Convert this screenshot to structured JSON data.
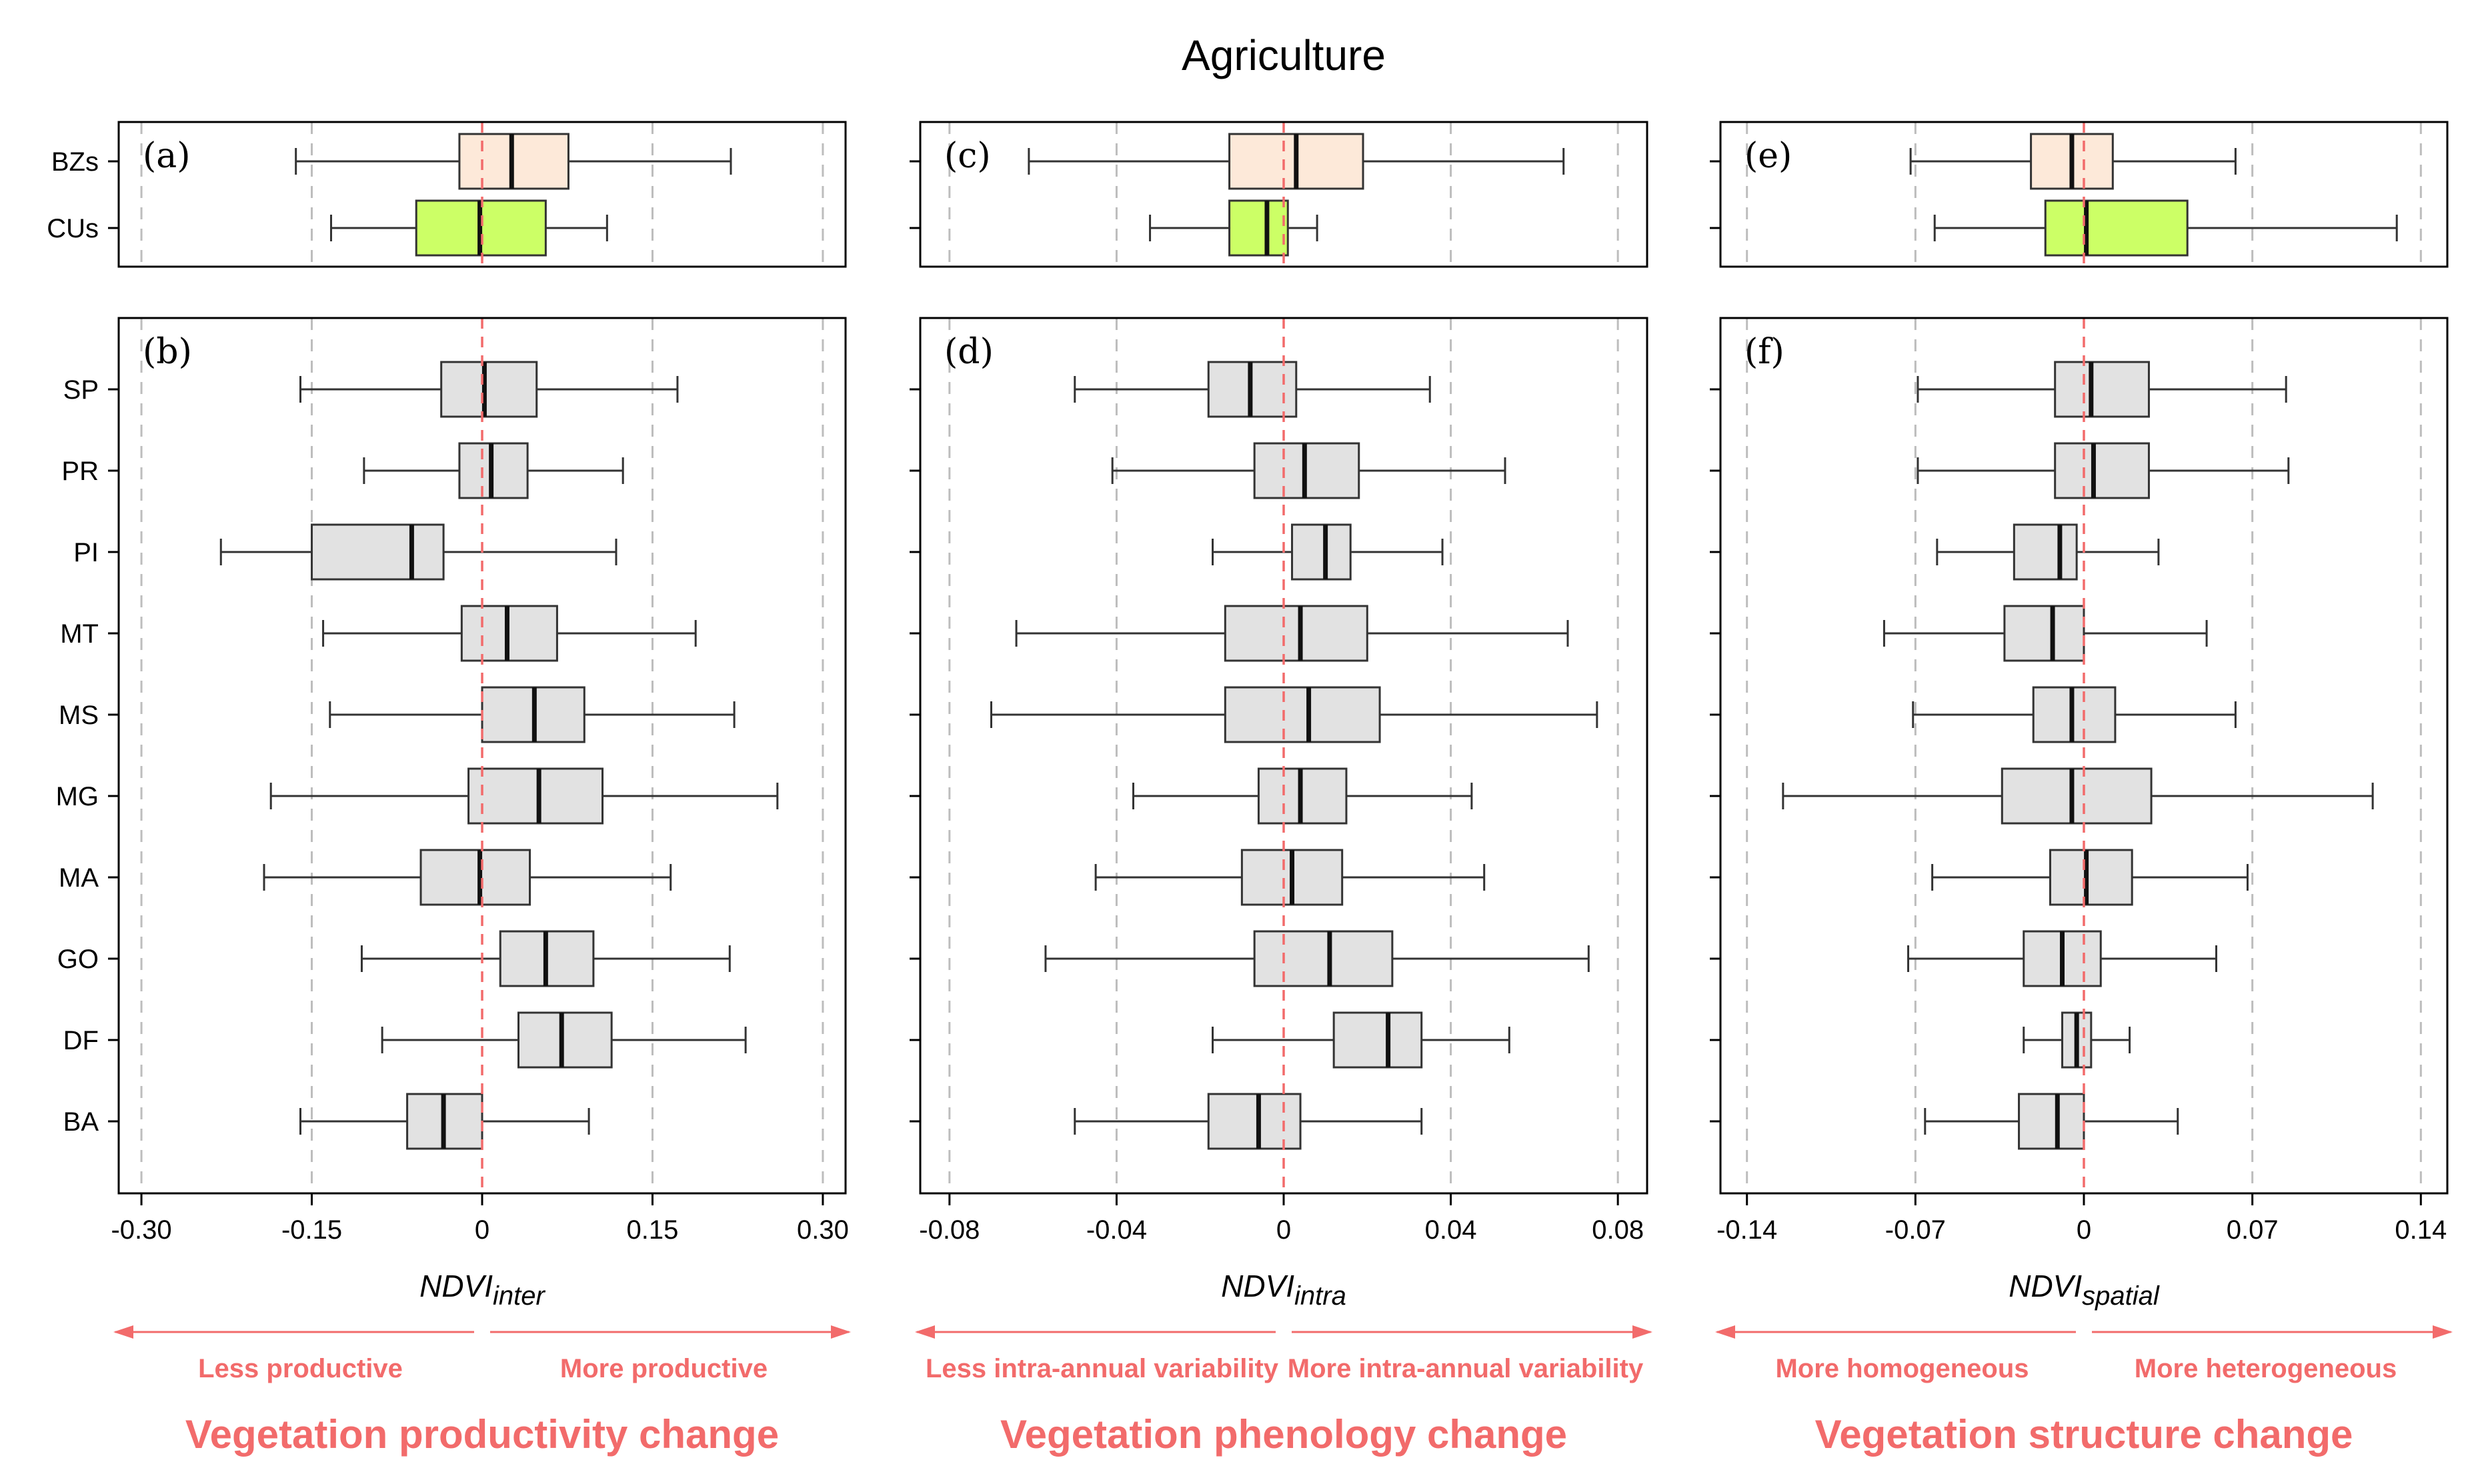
{
  "title": "Agriculture",
  "colors": {
    "bz_fill": "#fde9d9",
    "cu_fill": "#ccff66",
    "ecotype_fill": "#e2e2e2",
    "ref_line": "#f26b6b",
    "grid": "#bdbdbd",
    "annotation": "#f26b6b"
  },
  "chart_data": [
    {
      "type": "boxplot",
      "panel": "(a)",
      "categories": [
        "BZs",
        "CUs"
      ],
      "xlim": [
        -0.32,
        0.32
      ],
      "ticks": [
        -0.3,
        -0.15,
        0,
        0.15,
        0.3
      ],
      "tick_labels": [
        "-0.30",
        "-0.15",
        "0",
        "0.15",
        "0.30"
      ],
      "boxes": [
        {
          "name": "BZs",
          "min": -0.164,
          "q1": -0.02,
          "median": 0.026,
          "q3": 0.076,
          "max": 0.219
        },
        {
          "name": "CUs",
          "min": -0.133,
          "q1": -0.058,
          "median": -0.002,
          "q3": 0.056,
          "max": 0.11
        }
      ]
    },
    {
      "type": "boxplot",
      "panel": "(b)",
      "categories": [
        "SP",
        "PR",
        "PI",
        "MT",
        "MS",
        "MG",
        "MA",
        "GO",
        "DF",
        "BA"
      ],
      "xlim": [
        -0.32,
        0.32
      ],
      "ticks": [
        -0.3,
        -0.15,
        0,
        0.15,
        0.3
      ],
      "tick_labels": [
        "-0.30",
        "-0.15",
        "0",
        "0.15",
        "0.30"
      ],
      "xlabel": {
        "base": "NDVI",
        "sub": "inter"
      },
      "boxes": [
        {
          "name": "SP",
          "min": -0.16,
          "q1": -0.036,
          "median": 0.002,
          "q3": 0.048,
          "max": 0.172
        },
        {
          "name": "PR",
          "min": -0.104,
          "q1": -0.02,
          "median": 0.008,
          "q3": 0.04,
          "max": 0.124
        },
        {
          "name": "PI",
          "min": -0.23,
          "q1": -0.15,
          "median": -0.062,
          "q3": -0.034,
          "max": 0.118
        },
        {
          "name": "MT",
          "min": -0.14,
          "q1": -0.018,
          "median": 0.022,
          "q3": 0.066,
          "max": 0.188
        },
        {
          "name": "MS",
          "min": -0.134,
          "q1": 0.0,
          "median": 0.046,
          "q3": 0.09,
          "max": 0.222
        },
        {
          "name": "MG",
          "min": -0.186,
          "q1": -0.012,
          "median": 0.05,
          "q3": 0.106,
          "max": 0.26
        },
        {
          "name": "MA",
          "min": -0.192,
          "q1": -0.054,
          "median": -0.002,
          "q3": 0.042,
          "max": 0.166
        },
        {
          "name": "GO",
          "min": -0.106,
          "q1": 0.016,
          "median": 0.056,
          "q3": 0.098,
          "max": 0.218
        },
        {
          "name": "DF",
          "min": -0.088,
          "q1": 0.032,
          "median": 0.07,
          "q3": 0.114,
          "max": 0.232
        },
        {
          "name": "BA",
          "min": -0.16,
          "q1": -0.066,
          "median": -0.034,
          "q3": 0.0,
          "max": 0.094
        }
      ]
    },
    {
      "type": "boxplot",
      "panel": "(c)",
      "categories": [
        "BZs",
        "CUs"
      ],
      "xlim": [
        -0.087,
        0.087
      ],
      "ticks": [
        -0.08,
        -0.04,
        0,
        0.04,
        0.08
      ],
      "tick_labels": [
        "-0.08",
        "-0.04",
        "0",
        "0.04",
        "0.08"
      ],
      "boxes": [
        {
          "name": "BZs",
          "min": -0.061,
          "q1": -0.013,
          "median": 0.003,
          "q3": 0.019,
          "max": 0.067
        },
        {
          "name": "CUs",
          "min": -0.032,
          "q1": -0.013,
          "median": -0.004,
          "q3": 0.001,
          "max": 0.008
        }
      ]
    },
    {
      "type": "boxplot",
      "panel": "(d)",
      "categories": [
        "SP",
        "PR",
        "PI",
        "MT",
        "MS",
        "MG",
        "MA",
        "GO",
        "DF",
        "BA"
      ],
      "xlim": [
        -0.087,
        0.087
      ],
      "ticks": [
        -0.08,
        -0.04,
        0,
        0.04,
        0.08
      ],
      "tick_labels": [
        "-0.08",
        "-0.04",
        "0",
        "0.04",
        "0.08"
      ],
      "xlabel": {
        "base": "NDVI",
        "sub": "intra"
      },
      "boxes": [
        {
          "name": "SP",
          "min": -0.05,
          "q1": -0.018,
          "median": -0.008,
          "q3": 0.003,
          "max": 0.035
        },
        {
          "name": "PR",
          "min": -0.041,
          "q1": -0.007,
          "median": 0.005,
          "q3": 0.018,
          "max": 0.053
        },
        {
          "name": "PI",
          "min": -0.017,
          "q1": 0.002,
          "median": 0.01,
          "q3": 0.016,
          "max": 0.038
        },
        {
          "name": "MT",
          "min": -0.064,
          "q1": -0.014,
          "median": 0.004,
          "q3": 0.02,
          "max": 0.068
        },
        {
          "name": "MS",
          "min": -0.07,
          "q1": -0.014,
          "median": 0.006,
          "q3": 0.023,
          "max": 0.075
        },
        {
          "name": "MG",
          "min": -0.036,
          "q1": -0.006,
          "median": 0.004,
          "q3": 0.015,
          "max": 0.045
        },
        {
          "name": "MA",
          "min": -0.045,
          "q1": -0.01,
          "median": 0.002,
          "q3": 0.014,
          "max": 0.048
        },
        {
          "name": "GO",
          "min": -0.057,
          "q1": -0.007,
          "median": 0.011,
          "q3": 0.026,
          "max": 0.073
        },
        {
          "name": "DF",
          "min": -0.017,
          "q1": 0.012,
          "median": 0.025,
          "q3": 0.033,
          "max": 0.054
        },
        {
          "name": "BA",
          "min": -0.05,
          "q1": -0.018,
          "median": -0.006,
          "q3": 0.004,
          "max": 0.033
        }
      ]
    },
    {
      "type": "boxplot",
      "panel": "(e)",
      "categories": [
        "BZs",
        "CUs"
      ],
      "xlim": [
        -0.151,
        0.151
      ],
      "ticks": [
        -0.14,
        -0.07,
        0,
        0.07,
        0.14
      ],
      "tick_labels": [
        "-0.14",
        "-0.07",
        "0",
        "0.07",
        "0.14"
      ],
      "boxes": [
        {
          "name": "BZs",
          "min": -0.072,
          "q1": -0.022,
          "median": -0.005,
          "q3": 0.012,
          "max": 0.063
        },
        {
          "name": "CUs",
          "min": -0.062,
          "q1": -0.016,
          "median": 0.001,
          "q3": 0.043,
          "max": 0.13
        }
      ]
    },
    {
      "type": "boxplot",
      "panel": "(f)",
      "categories": [
        "SP",
        "PR",
        "PI",
        "MT",
        "MS",
        "MG",
        "MA",
        "GO",
        "DF",
        "BA"
      ],
      "xlim": [
        -0.151,
        0.151
      ],
      "ticks": [
        -0.14,
        -0.07,
        0,
        0.07,
        0.14
      ],
      "tick_labels": [
        "-0.14",
        "-0.07",
        "0",
        "0.07",
        "0.14"
      ],
      "xlabel": {
        "base": "NDVI",
        "sub": "spatial"
      },
      "boxes": [
        {
          "name": "SP",
          "min": -0.069,
          "q1": -0.012,
          "median": 0.003,
          "q3": 0.027,
          "max": 0.084
        },
        {
          "name": "PR",
          "min": -0.069,
          "q1": -0.012,
          "median": 0.004,
          "q3": 0.027,
          "max": 0.085
        },
        {
          "name": "PI",
          "min": -0.061,
          "q1": -0.029,
          "median": -0.01,
          "q3": -0.003,
          "max": 0.031
        },
        {
          "name": "MT",
          "min": -0.083,
          "q1": -0.033,
          "median": -0.013,
          "q3": 0.0,
          "max": 0.051
        },
        {
          "name": "MS",
          "min": -0.071,
          "q1": -0.021,
          "median": -0.005,
          "q3": 0.013,
          "max": 0.063
        },
        {
          "name": "MG",
          "min": -0.125,
          "q1": -0.034,
          "median": -0.005,
          "q3": 0.028,
          "max": 0.12
        },
        {
          "name": "MA",
          "min": -0.063,
          "q1": -0.014,
          "median": 0.001,
          "q3": 0.02,
          "max": 0.068
        },
        {
          "name": "GO",
          "min": -0.073,
          "q1": -0.025,
          "median": -0.009,
          "q3": 0.007,
          "max": 0.055
        },
        {
          "name": "DF",
          "min": -0.025,
          "q1": -0.009,
          "median": -0.003,
          "q3": 0.003,
          "max": 0.019
        },
        {
          "name": "BA",
          "min": -0.066,
          "q1": -0.027,
          "median": -0.011,
          "q3": 0.0,
          "max": 0.039
        }
      ]
    }
  ],
  "annotations": [
    {
      "left": "Less productive",
      "right": "More productive",
      "group": "Vegetation productivity change"
    },
    {
      "left": "Less intra-annual variability",
      "right": "More intra-annual variability",
      "group": "Vegetation phenology change"
    },
    {
      "left": "More homogeneous",
      "right": "More heterogeneous",
      "group": "Vegetation structure change"
    }
  ]
}
